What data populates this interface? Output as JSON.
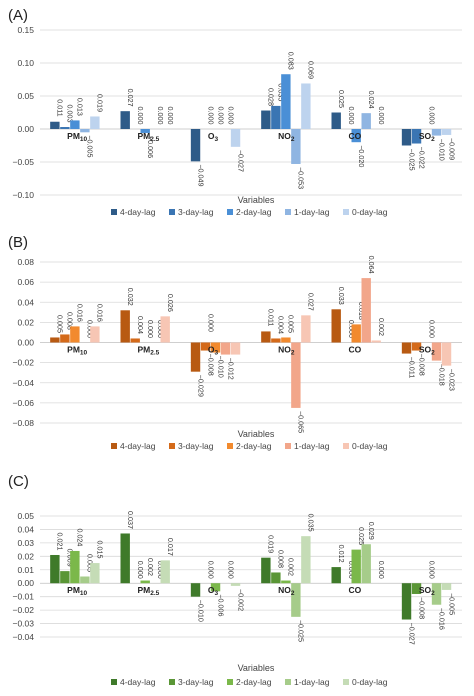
{
  "chart_data": [
    {
      "type": "bar",
      "panel_label": "(A)",
      "categories": [
        "PM10",
        "PM2.5",
        "O3",
        "NO2",
        "CO",
        "SO2"
      ],
      "category_display": [
        [
          "PM",
          "10"
        ],
        [
          "PM",
          "2.5"
        ],
        [
          "O",
          "3"
        ],
        [
          "NO",
          "2"
        ],
        [
          "CO",
          ""
        ],
        [
          "SO",
          "2"
        ]
      ],
      "series": [
        {
          "name": "4-day-lag",
          "color": "#2e5b88",
          "values": [
            0.011,
            0.027,
            -0.049,
            0.028,
            0.025,
            -0.025
          ]
        },
        {
          "name": "3-day-lag",
          "color": "#3a75b3",
          "values": [
            0.003,
            0.0,
            0.0,
            0.035,
            0.0,
            -0.022
          ]
        },
        {
          "name": "2-day-lag",
          "color": "#4a8fd6",
          "values": [
            0.013,
            -0.006,
            0.0,
            0.083,
            -0.02,
            0.0
          ]
        },
        {
          "name": "1-day-lag",
          "color": "#8fb5e2",
          "values": [
            -0.005,
            0.0,
            0.0,
            -0.053,
            0.024,
            -0.01
          ]
        },
        {
          "name": "0-day-lag",
          "color": "#bdd3ee",
          "values": [
            0.019,
            0.0,
            -0.027,
            0.069,
            0.0,
            -0.009
          ]
        }
      ],
      "value_labels": [
        [
          "0.011",
          "0.003",
          "0.013",
          "−0.005",
          "0.019"
        ],
        [
          "0.027",
          "0.000",
          "−0.006",
          "0.000",
          "0.000"
        ],
        [
          "−0.049",
          "0.000",
          "0.000",
          "0.000",
          "−0.027"
        ],
        [
          "0.028",
          "0.035",
          "0.083",
          "−0.053",
          "0.069"
        ],
        [
          "0.025",
          "0.000",
          "−0.020",
          "0.024",
          "0.000"
        ],
        [
          "−0.025",
          "−0.022",
          "0.000",
          "−0.010",
          "−0.009"
        ]
      ],
      "yticks": [
        "0.15",
        "0.10",
        "0.05",
        "0.00",
        "−0.05",
        "−0.10"
      ],
      "ytick_values": [
        0.15,
        0.1,
        0.05,
        0.0,
        -0.05,
        -0.1
      ],
      "ylim": [
        -0.1,
        0.15
      ],
      "xlabel": "Variables",
      "grid": true,
      "legend_position": "bottom"
    },
    {
      "type": "bar",
      "panel_label": "(B)",
      "categories": [
        "PM10",
        "PM2.5",
        "O3",
        "NO2",
        "CO",
        "SO2"
      ],
      "category_display": [
        [
          "PM",
          "10"
        ],
        [
          "PM",
          "2.5"
        ],
        [
          "O",
          "3"
        ],
        [
          "NO",
          "2"
        ],
        [
          "CO",
          ""
        ],
        [
          "SO",
          "2"
        ]
      ],
      "series": [
        {
          "name": "4-day-lag",
          "color": "#b85a12",
          "values": [
            0.005,
            0.032,
            -0.029,
            0.011,
            0.033,
            -0.011
          ]
        },
        {
          "name": "3-day-lag",
          "color": "#d46a1a",
          "values": [
            0.008,
            0.004,
            -0.008,
            0.004,
            0.0,
            -0.008
          ]
        },
        {
          "name": "2-day-lag",
          "color": "#f28a2e",
          "values": [
            0.016,
            0.0,
            -0.01,
            0.005,
            0.018,
            0.0
          ]
        },
        {
          "name": "1-day-lag",
          "color": "#f2a68a",
          "values": [
            0.0,
            0.0,
            -0.012,
            -0.065,
            0.064,
            -0.018
          ]
        },
        {
          "name": "0-day-lag",
          "color": "#f7c6b4",
          "values": [
            0.016,
            0.026,
            -0.012,
            0.027,
            0.002,
            -0.023
          ]
        }
      ],
      "value_labels": [
        [
          "0.005",
          "0.008",
          "0.016",
          "0.000",
          "0.016"
        ],
        [
          "0.032",
          "0.004",
          "0.000",
          "0.000",
          "0.026"
        ],
        [
          "−0.029",
          "−0.008",
          "−0.010",
          "−0.012",
          ""
        ],
        [
          "0.011",
          "0.004",
          "0.005",
          "−0.065",
          "0.027"
        ],
        [
          "0.033",
          "0.000",
          "0.018",
          "0.064",
          "0.002"
        ],
        [
          "−0.011",
          "−0.008",
          "0.000",
          "−0.018",
          "−0.023"
        ]
      ],
      "extra_labels": [
        {
          "category_index": 2,
          "text": "0.000"
        }
      ],
      "yticks": [
        "0.08",
        "0.06",
        "0.04",
        "0.02",
        "0.00",
        "−0.02",
        "−0.04",
        "−0.06",
        "−0.08"
      ],
      "ytick_values": [
        0.08,
        0.06,
        0.04,
        0.02,
        0.0,
        -0.02,
        -0.04,
        -0.06,
        -0.08
      ],
      "ylim": [
        -0.08,
        0.08
      ],
      "xlabel": "Variables",
      "grid": true,
      "legend_position": "bottom"
    },
    {
      "type": "bar",
      "panel_label": "(C)",
      "categories": [
        "PM10",
        "PM2.5",
        "O3",
        "NO2",
        "CO",
        "SO2"
      ],
      "category_display": [
        [
          "PM",
          "10"
        ],
        [
          "PM",
          "2.5"
        ],
        [
          "O",
          "3"
        ],
        [
          "NO",
          "2"
        ],
        [
          "CO",
          ""
        ],
        [
          "SO",
          "2"
        ]
      ],
      "series": [
        {
          "name": "4-day-lag",
          "color": "#3f7a2a",
          "values": [
            0.021,
            0.037,
            -0.01,
            0.019,
            0.012,
            -0.027
          ]
        },
        {
          "name": "3-day-lag",
          "color": "#5a9636",
          "values": [
            0.009,
            0.0,
            0.0,
            0.008,
            0.0,
            -0.008
          ]
        },
        {
          "name": "2-day-lag",
          "color": "#7bb84a",
          "values": [
            0.024,
            0.002,
            -0.006,
            0.002,
            0.025,
            0.0
          ]
        },
        {
          "name": "1-day-lag",
          "color": "#a6cc8a",
          "values": [
            0.005,
            0.0,
            0.0,
            -0.025,
            0.029,
            -0.016
          ]
        },
        {
          "name": "0-day-lag",
          "color": "#c5dcb6",
          "values": [
            0.015,
            0.017,
            -0.002,
            0.035,
            0.0,
            -0.005
          ]
        }
      ],
      "value_labels": [
        [
          "0.021",
          "0.009",
          "0.024",
          "0.005",
          "0.015"
        ],
        [
          "0.037",
          "0.000",
          "0.002",
          "0.000",
          "0.017"
        ],
        [
          "−0.010",
          "0.000",
          "−0.006",
          "0.000",
          "−0.002"
        ],
        [
          "0.019",
          "0.008",
          "0.002",
          "−0.025",
          "0.035"
        ],
        [
          "0.012",
          "0.000",
          "0.025",
          "0.029",
          "0.000"
        ],
        [
          "−0.027",
          "−0.008",
          "0.000",
          "−0.016",
          "−0.005"
        ]
      ],
      "yticks": [
        "0.05",
        "0.04",
        "0.03",
        "0.02",
        "0.01",
        "0.00",
        "−0.01",
        "−0.02",
        "−0.03",
        "−0.04"
      ],
      "ytick_values": [
        0.05,
        0.04,
        0.03,
        0.02,
        0.01,
        0.0,
        -0.01,
        -0.02,
        -0.03,
        -0.04
      ],
      "ylim": [
        -0.04,
        0.05
      ],
      "xlabel": "Variables",
      "grid": true,
      "legend_position": "bottom"
    }
  ]
}
